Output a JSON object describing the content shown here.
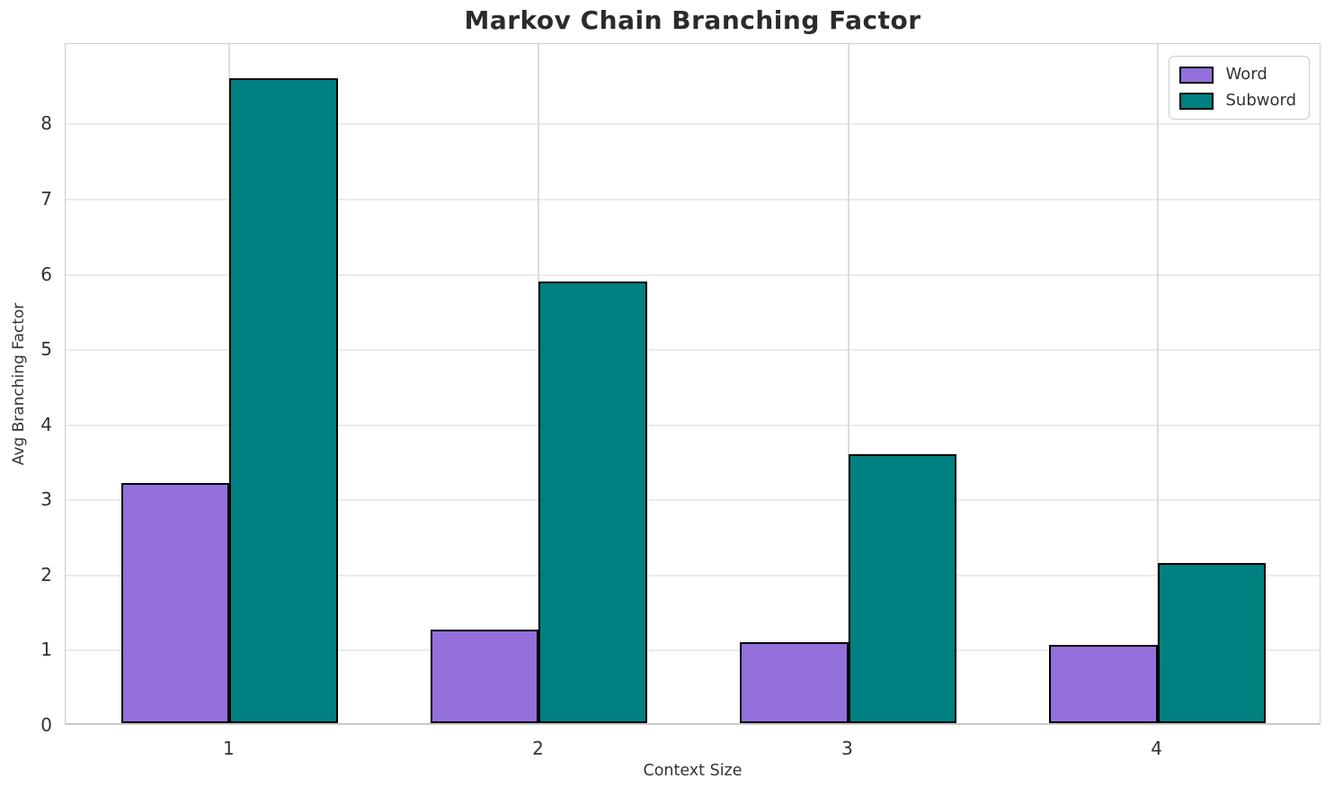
{
  "title": "Markov Chain Branching Factor",
  "chart_data": {
    "type": "bar",
    "categories": [
      "1",
      "2",
      "3",
      "4"
    ],
    "series": [
      {
        "name": "Word",
        "color": "#9370DB",
        "values": [
          3.2,
          1.24,
          1.08,
          1.04
        ]
      },
      {
        "name": "Subword",
        "color": "#008080",
        "values": [
          8.58,
          5.87,
          3.58,
          2.13
        ]
      }
    ],
    "title": "Markov Chain Branching Factor",
    "xlabel": "Context Size",
    "ylabel": "Avg Branching Factor",
    "yticks": [
      0,
      1,
      2,
      3,
      4,
      5,
      6,
      7,
      8
    ],
    "ylim": [
      0,
      9.07
    ],
    "xlim": [
      -0.53,
      3.53
    ],
    "bar_width": 0.35,
    "bar_offset": 0.175,
    "bar_edge_color": "#000000",
    "grid": true,
    "legend_position": "upper right"
  },
  "style": {
    "background": "#ffffff",
    "grid_color_horizontal": "#ebebeb",
    "grid_color_vertical": "#dcdcdc",
    "spine_color": "#cdcdcd",
    "text_color": "#333333",
    "title_color": "#2b2b2b",
    "legend_border_color": "#cccccc"
  }
}
